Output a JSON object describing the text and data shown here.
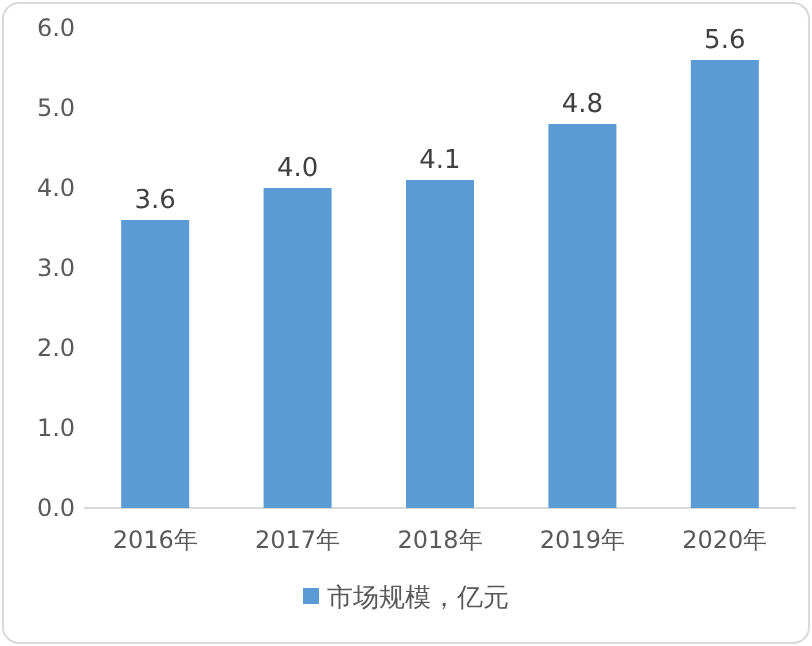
{
  "chart_data": {
    "type": "bar",
    "categories": [
      "2016年",
      "2017年",
      "2018年",
      "2019年",
      "2020年"
    ],
    "series": [
      {
        "name": "市场规模，亿元",
        "color": "#5b9bd5",
        "values": [
          3.6,
          4.0,
          4.1,
          4.8,
          5.6
        ],
        "value_labels": [
          "3.6",
          "4.0",
          "4.1",
          "4.8",
          "5.6"
        ]
      }
    ],
    "ylim": [
      0,
      6
    ],
    "yticks": [
      {
        "value": 0,
        "label": "0.0"
      },
      {
        "value": 1,
        "label": "1.0"
      },
      {
        "value": 2,
        "label": "2.0"
      },
      {
        "value": 3,
        "label": "3.0"
      },
      {
        "value": 4,
        "label": "4.0"
      },
      {
        "value": 5,
        "label": "5.0"
      },
      {
        "value": 6,
        "label": "6.0"
      }
    ],
    "grid": false,
    "legend": "bottom"
  }
}
